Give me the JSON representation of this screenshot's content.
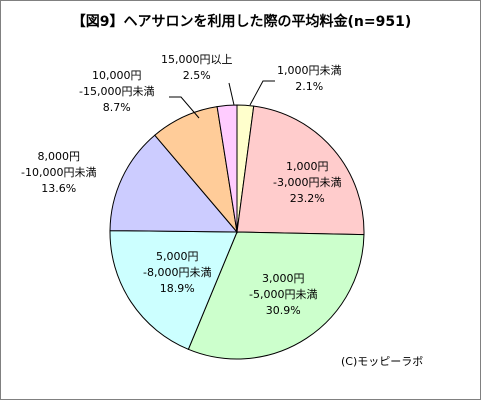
{
  "chart_data": {
    "type": "pie",
    "title": "【図9】ヘアサロンを利用した際の平均料金(n=951)",
    "unit": "%",
    "start_angle": "12 o'clock",
    "direction": "clockwise",
    "slices": [
      {
        "label_lines": [
          "1,000円未満"
        ],
        "value": 2.1,
        "value_text": "2.1%",
        "color": "#ffffcc"
      },
      {
        "label_lines": [
          "1,000円",
          "-3,000円未満"
        ],
        "value": 23.2,
        "value_text": "23.2%",
        "color": "#ffcccc"
      },
      {
        "label_lines": [
          "3,000円",
          "-5,000円未満"
        ],
        "value": 30.9,
        "value_text": "30.9%",
        "color": "#ccffcc"
      },
      {
        "label_lines": [
          "5,000円",
          "-8,000円未満"
        ],
        "value": 18.9,
        "value_text": "18.9%",
        "color": "#ccffff"
      },
      {
        "label_lines": [
          "8,000円",
          "-10,000円未満"
        ],
        "value": 13.6,
        "value_text": "13.6%",
        "color": "#ccccff"
      },
      {
        "label_lines": [
          "10,000円",
          "-15,000円未満"
        ],
        "value": 8.7,
        "value_text": "8.7%",
        "color": "#ffcc99"
      },
      {
        "label_lines": [
          "15,000円以上"
        ],
        "value": 2.5,
        "value_text": "2.5%",
        "color": "#ffccff"
      }
    ],
    "credit": "(C)モッピーラボ"
  }
}
